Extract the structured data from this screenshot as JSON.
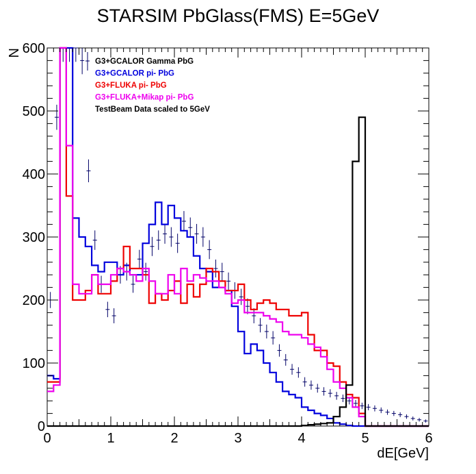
{
  "chart_data": {
    "type": "histogram",
    "title": "STARSIM PbGlass(FMS) E=5GeV",
    "xlabel": "dE[GeV]",
    "ylabel": "N",
    "xlim": [
      0,
      6
    ],
    "ylim": [
      0,
      600
    ],
    "x_ticks": [
      0,
      1,
      2,
      3,
      4,
      5,
      6
    ],
    "y_ticks": [
      0,
      100,
      200,
      300,
      400,
      500,
      600
    ],
    "bin_width": 0.1,
    "legend_position": "top-left",
    "series": [
      {
        "name": "G3+GCALOR Gamma PbG",
        "style": "points",
        "color": "#000066",
        "x": [
          0.05,
          0.15,
          0.25,
          0.35,
          0.45,
          0.55,
          0.65,
          0.75,
          0.85,
          0.95,
          1.05,
          1.15,
          1.25,
          1.35,
          1.45,
          1.55,
          1.65,
          1.75,
          1.85,
          1.95,
          2.05,
          2.15,
          2.25,
          2.35,
          2.45,
          2.55,
          2.65,
          2.75,
          2.85,
          2.95,
          3.05,
          3.15,
          3.25,
          3.35,
          3.45,
          3.55,
          3.65,
          3.75,
          3.85,
          3.95,
          4.05,
          4.15,
          4.25,
          4.35,
          4.45,
          4.55,
          4.65,
          4.75,
          4.85,
          4.95,
          5.05,
          5.15,
          5.25,
          5.35,
          5.45,
          5.55,
          5.65,
          5.75,
          5.85,
          5.95
        ],
        "y": [
          200,
          490,
          600,
          600,
          600,
          580,
          405,
          295,
          225,
          185,
          175,
          240,
          245,
          225,
          265,
          245,
          285,
          295,
          305,
          300,
          290,
          325,
          315,
          305,
          300,
          280,
          250,
          245,
          230,
          215,
          205,
          190,
          175,
          160,
          150,
          140,
          120,
          105,
          90,
          85,
          70,
          65,
          60,
          55,
          52,
          48,
          44,
          40,
          36,
          32,
          30,
          28,
          25,
          22,
          20,
          18,
          15,
          12,
          10,
          8
        ]
      },
      {
        "name": "G3+GCALOR pi- PbG",
        "style": "step",
        "color": "#0000dd",
        "y": [
          80,
          75,
          600,
          600,
          330,
          300,
          285,
          255,
          245,
          260,
          260,
          240,
          255,
          240,
          240,
          290,
          320,
          355,
          320,
          350,
          330,
          310,
          300,
          270,
          250,
          245,
          220,
          220,
          215,
          190,
          150,
          115,
          130,
          120,
          100,
          85,
          70,
          55,
          50,
          45,
          30,
          25,
          20,
          17,
          12,
          5,
          3,
          1,
          0,
          0,
          0,
          0,
          0,
          0,
          0,
          0,
          0,
          0,
          0,
          0
        ]
      },
      {
        "name": "G3+FLUKA pi- PbG",
        "style": "step",
        "color": "#ee0000",
        "y": [
          70,
          70,
          600,
          365,
          200,
          200,
          215,
          240,
          210,
          210,
          230,
          250,
          285,
          250,
          250,
          240,
          195,
          210,
          200,
          215,
          230,
          195,
          225,
          205,
          225,
          250,
          245,
          230,
          215,
          215,
          225,
          200,
          185,
          195,
          200,
          195,
          185,
          185,
          175,
          175,
          180,
          145,
          120,
          120,
          100,
          95,
          70,
          50,
          45,
          20,
          0,
          0,
          0,
          0,
          0,
          0,
          0,
          0,
          0,
          0
        ]
      },
      {
        "name": "G3+FLUKA+Mikap pi- PbG",
        "style": "step",
        "color": "#ee00ee",
        "y": [
          55,
          65,
          600,
          445,
          225,
          210,
          210,
          240,
          225,
          225,
          240,
          250,
          245,
          240,
          230,
          250,
          230,
          210,
          210,
          240,
          210,
          250,
          230,
          240,
          235,
          230,
          230,
          220,
          210,
          195,
          200,
          180,
          180,
          180,
          175,
          170,
          165,
          150,
          145,
          145,
          140,
          130,
          125,
          110,
          90,
          70,
          60,
          45,
          30,
          15,
          0,
          0,
          0,
          0,
          0,
          0,
          0,
          0,
          0,
          0
        ]
      },
      {
        "name": "TestBeam Data scaled to 5GeV",
        "style": "step",
        "color": "#000000",
        "y": [
          0,
          0,
          0,
          0,
          0,
          0,
          0,
          0,
          0,
          0,
          0,
          0,
          0,
          0,
          0,
          0,
          0,
          0,
          0,
          0,
          0,
          0,
          0,
          0,
          0,
          0,
          0,
          0,
          0,
          0,
          0,
          0,
          0,
          0,
          0,
          0,
          0,
          0,
          0,
          0,
          1,
          2,
          3,
          4,
          5,
          15,
          30,
          65,
          420,
          490,
          0,
          0,
          0,
          0,
          0,
          0,
          0,
          0,
          0,
          0
        ]
      }
    ]
  }
}
